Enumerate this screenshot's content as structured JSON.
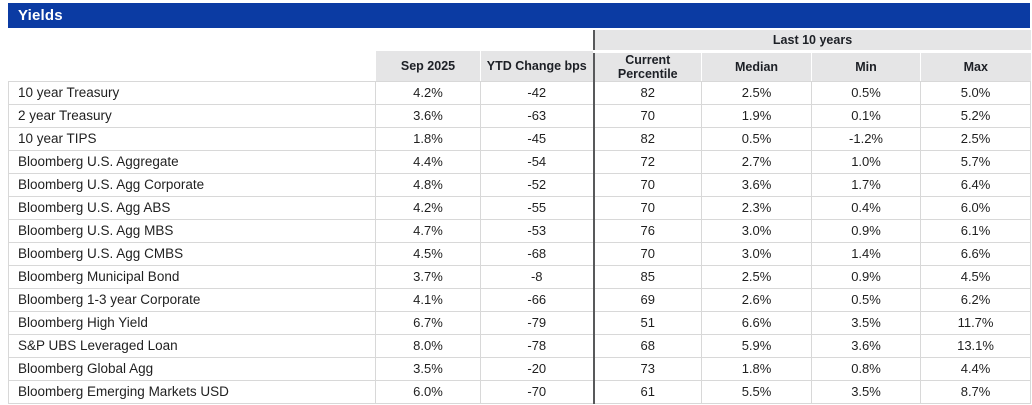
{
  "title": "Yields",
  "colors": {
    "title_bar_bg": "#0B3BA3",
    "title_text": "#FFFFFF",
    "header_bg": "#E5E5E6",
    "header_text": "#1D2026",
    "dark_divider": "#58595B",
    "grid_line": "#D8D8D8",
    "body_text": "#1F1F1F"
  },
  "chart_data": {
    "type": "table",
    "title": "Yields",
    "group_header": "Last 10 years",
    "group_header_spans_columns": [
      "Current Percentile",
      "Median",
      "Min",
      "Max"
    ],
    "columns": [
      "",
      "Sep 2025",
      "YTD Change bps",
      "Current Percentile",
      "Median",
      "Min",
      "Max"
    ],
    "rows": [
      {
        "label": "10 year Treasury",
        "values": [
          "4.2%",
          "-42",
          "82",
          "2.5%",
          "0.5%",
          "5.0%"
        ]
      },
      {
        "label": "2 year Treasury",
        "values": [
          "3.6%",
          "-63",
          "70",
          "1.9%",
          "0.1%",
          "5.2%"
        ]
      },
      {
        "label": "10 year TIPS",
        "values": [
          "1.8%",
          "-45",
          "82",
          "0.5%",
          "-1.2%",
          "2.5%"
        ]
      },
      {
        "label": "Bloomberg U.S. Aggregate",
        "values": [
          "4.4%",
          "-54",
          "72",
          "2.7%",
          "1.0%",
          "5.7%"
        ]
      },
      {
        "label": "Bloomberg U.S. Agg Corporate",
        "values": [
          "4.8%",
          "-52",
          "70",
          "3.6%",
          "1.7%",
          "6.4%"
        ]
      },
      {
        "label": "Bloomberg U.S. Agg ABS",
        "values": [
          "4.2%",
          "-55",
          "70",
          "2.3%",
          "0.4%",
          "6.0%"
        ]
      },
      {
        "label": "Bloomberg U.S. Agg MBS",
        "values": [
          "4.7%",
          "-53",
          "76",
          "3.0%",
          "0.9%",
          "6.1%"
        ]
      },
      {
        "label": "Bloomberg U.S. Agg CMBS",
        "values": [
          "4.5%",
          "-68",
          "70",
          "3.0%",
          "1.4%",
          "6.6%"
        ]
      },
      {
        "label": "Bloomberg Municipal Bond",
        "values": [
          "3.7%",
          "-8",
          "85",
          "2.5%",
          "0.9%",
          "4.5%"
        ]
      },
      {
        "label": "Bloomberg 1-3 year Corporate",
        "values": [
          "4.1%",
          "-66",
          "69",
          "2.6%",
          "0.5%",
          "6.2%"
        ]
      },
      {
        "label": "Bloomberg High Yield",
        "values": [
          "6.7%",
          "-79",
          "51",
          "6.6%",
          "3.5%",
          "11.7%"
        ]
      },
      {
        "label": "S&P UBS Leveraged Loan",
        "values": [
          "8.0%",
          "-78",
          "68",
          "5.9%",
          "3.6%",
          "13.1%"
        ]
      },
      {
        "label": "Bloomberg Global Agg",
        "values": [
          "3.5%",
          "-20",
          "73",
          "1.8%",
          "0.8%",
          "4.4%"
        ]
      },
      {
        "label": "Bloomberg Emerging Markets USD",
        "values": [
          "6.0%",
          "-70",
          "61",
          "5.5%",
          "3.5%",
          "8.7%"
        ]
      }
    ]
  }
}
